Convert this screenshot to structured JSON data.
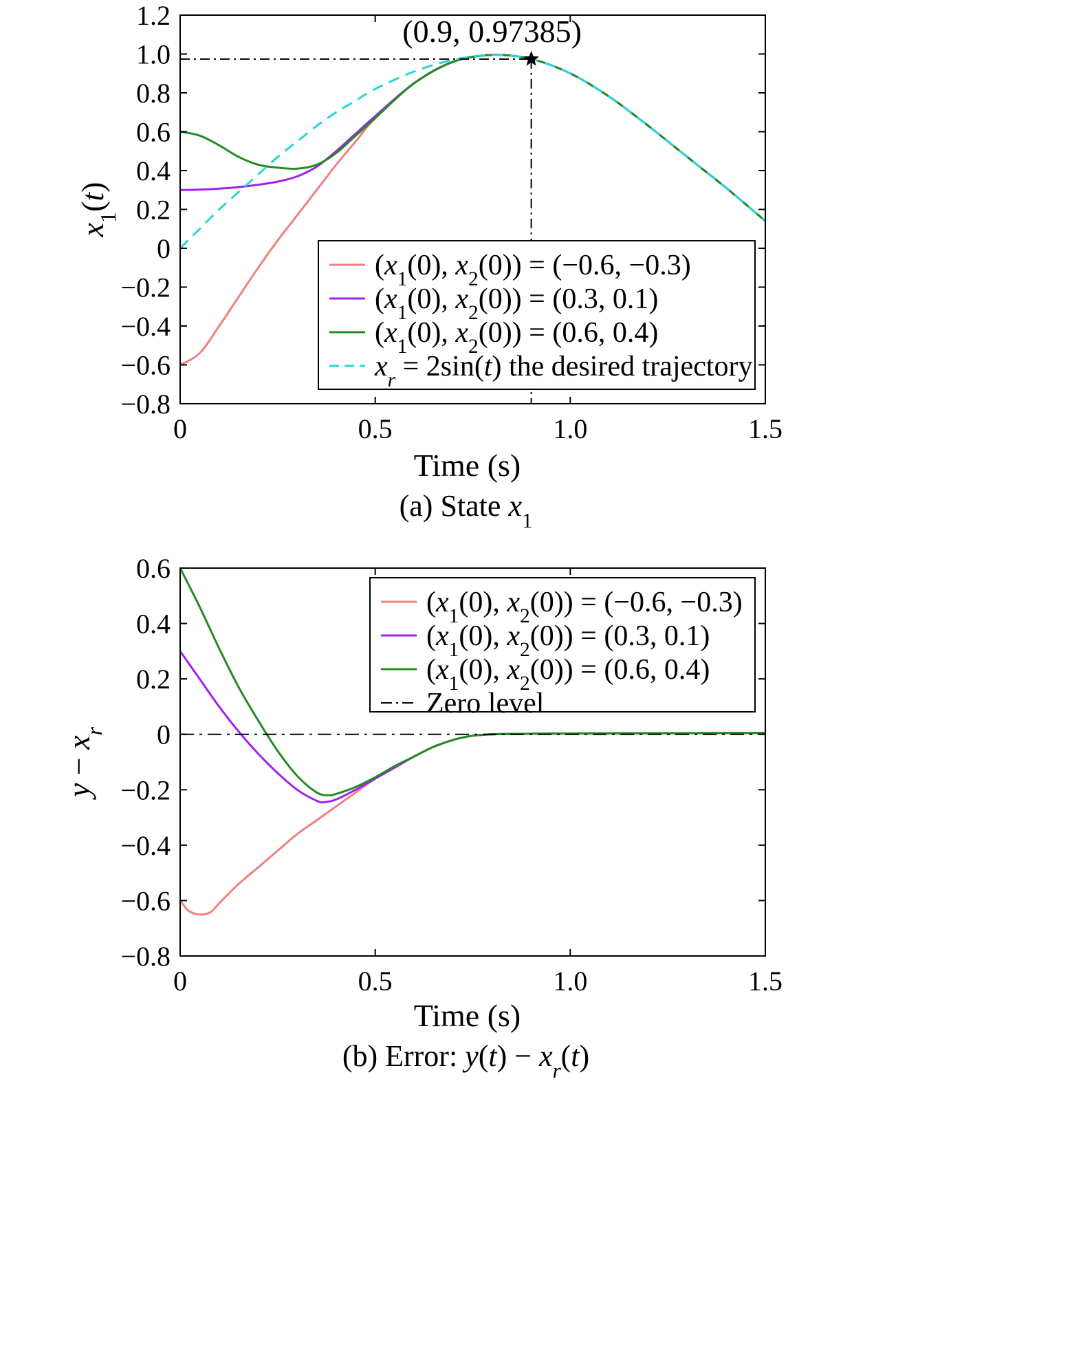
{
  "chart_data": [
    {
      "type": "line",
      "caption": "(a) State x₁",
      "xlabel": "Time (s)",
      "ylabel": "x₁(t)",
      "xlim": [
        0,
        1.5
      ],
      "ylim": [
        -0.8,
        1.2
      ],
      "xticks": [
        "0",
        "0.5",
        "1.0",
        "1.5"
      ],
      "yticks": [
        "1.2",
        "1.0",
        "0.8",
        "0.6",
        "0.4",
        "0.2",
        "0",
        "−0.2",
        "−0.4",
        "−0.6",
        "−0.8"
      ],
      "legend_position": "bottom-right",
      "annotation": {
        "text": "(0.9, 0.97385)",
        "x": 0.9,
        "y": 0.97385
      },
      "series": [
        {
          "name": "(x₁(0), x₂(0)) = (−0.6, −0.3)",
          "color": "#f08080",
          "style": "solid",
          "x": [
            0,
            0.05,
            0.1,
            0.15,
            0.2,
            0.25,
            0.3,
            0.35,
            0.4,
            0.45,
            0.5,
            0.6,
            0.7,
            0.8,
            0.9,
            1.0,
            1.1,
            1.2,
            1.3,
            1.4,
            1.5
          ],
          "y": [
            -0.6,
            -0.54,
            -0.4,
            -0.25,
            -0.1,
            0.04,
            0.17,
            0.3,
            0.43,
            0.55,
            0.67,
            0.85,
            0.96,
            0.995,
            0.974,
            0.9,
            0.78,
            0.63,
            0.47,
            0.31,
            0.14
          ]
        },
        {
          "name": "(x₁(0), x₂(0)) = (0.3, 0.1)",
          "color": "#a020f0",
          "style": "solid",
          "x": [
            0,
            0.05,
            0.1,
            0.15,
            0.2,
            0.25,
            0.3,
            0.35,
            0.4,
            0.45,
            0.5,
            0.6,
            0.7,
            0.8,
            0.9,
            1.0,
            1.1,
            1.2,
            1.3,
            1.4,
            1.5
          ],
          "y": [
            0.3,
            0.302,
            0.307,
            0.315,
            0.327,
            0.343,
            0.37,
            0.42,
            0.5,
            0.59,
            0.68,
            0.85,
            0.96,
            0.995,
            0.974,
            0.9,
            0.78,
            0.63,
            0.47,
            0.31,
            0.14
          ]
        },
        {
          "name": "(x₁(0), x₂(0)) = (0.6, 0.4)",
          "color": "#228b22",
          "style": "solid",
          "x": [
            0,
            0.05,
            0.1,
            0.15,
            0.2,
            0.25,
            0.3,
            0.35,
            0.4,
            0.45,
            0.5,
            0.6,
            0.7,
            0.8,
            0.9,
            1.0,
            1.1,
            1.2,
            1.3,
            1.4,
            1.5
          ],
          "y": [
            0.6,
            0.58,
            0.53,
            0.47,
            0.43,
            0.415,
            0.41,
            0.43,
            0.49,
            0.58,
            0.67,
            0.85,
            0.96,
            0.995,
            0.974,
            0.9,
            0.78,
            0.63,
            0.47,
            0.31,
            0.14
          ]
        },
        {
          "name": "xᵣ = 2sin(t) the desired trajectory",
          "color": "#28d6d6",
          "style": "dashed",
          "x": [
            0,
            0.05,
            0.1,
            0.15,
            0.2,
            0.25,
            0.3,
            0.35,
            0.4,
            0.45,
            0.5,
            0.6,
            0.7,
            0.8,
            0.9,
            1.0,
            1.1,
            1.2,
            1.3,
            1.4,
            1.5
          ],
          "y": [
            0.0,
            0.1,
            0.2,
            0.29,
            0.38,
            0.47,
            0.55,
            0.63,
            0.7,
            0.76,
            0.82,
            0.91,
            0.97,
            0.995,
            0.974,
            0.9,
            0.78,
            0.63,
            0.47,
            0.31,
            0.14
          ]
        }
      ]
    },
    {
      "type": "line",
      "caption": "(b) Error: y(t) − xᵣ(t)",
      "xlabel": "Time (s)",
      "ylabel": "y − xᵣ",
      "xlim": [
        0,
        1.5
      ],
      "ylim": [
        -0.8,
        0.6
      ],
      "xticks": [
        "0",
        "0.5",
        "1.0",
        "1.5"
      ],
      "yticks": [
        "0.6",
        "0.4",
        "0.2",
        "0",
        "−0.2",
        "−0.4",
        "−0.6",
        "−0.8"
      ],
      "legend_position": "top-right",
      "series": [
        {
          "name": "(x₁(0), x₂(0)) = (−0.6, −0.3)",
          "color": "#f08080",
          "style": "solid",
          "x": [
            0,
            0.02,
            0.04,
            0.06,
            0.08,
            0.1,
            0.15,
            0.2,
            0.25,
            0.3,
            0.35,
            0.4,
            0.45,
            0.5,
            0.55,
            0.6,
            0.65,
            0.7,
            0.75,
            0.8,
            0.9,
            1.0,
            1.2,
            1.5
          ],
          "y": [
            -0.6,
            -0.635,
            -0.648,
            -0.65,
            -0.64,
            -0.61,
            -0.54,
            -0.48,
            -0.42,
            -0.36,
            -0.31,
            -0.26,
            -0.21,
            -0.16,
            -0.12,
            -0.08,
            -0.045,
            -0.02,
            -0.005,
            0.0,
            0.002,
            0.003,
            0.004,
            0.005
          ]
        },
        {
          "name": "(x₁(0), x₂(0)) = (0.3, 0.1)",
          "color": "#a020f0",
          "style": "solid",
          "x": [
            0,
            0.05,
            0.1,
            0.15,
            0.2,
            0.25,
            0.3,
            0.35,
            0.37,
            0.4,
            0.45,
            0.5,
            0.55,
            0.6,
            0.65,
            0.7,
            0.75,
            0.8,
            0.9,
            1.0,
            1.2,
            1.5
          ],
          "y": [
            0.3,
            0.2,
            0.1,
            0.01,
            -0.07,
            -0.14,
            -0.2,
            -0.24,
            -0.245,
            -0.235,
            -0.2,
            -0.16,
            -0.12,
            -0.08,
            -0.045,
            -0.02,
            -0.005,
            0.0,
            0.002,
            0.003,
            0.004,
            0.005
          ]
        },
        {
          "name": "(x₁(0), x₂(0)) = (0.6, 0.4)",
          "color": "#228b22",
          "style": "solid",
          "x": [
            0,
            0.05,
            0.1,
            0.15,
            0.2,
            0.25,
            0.3,
            0.35,
            0.38,
            0.4,
            0.45,
            0.5,
            0.55,
            0.6,
            0.65,
            0.7,
            0.75,
            0.8,
            0.9,
            1.0,
            1.2,
            1.5
          ],
          "y": [
            0.6,
            0.46,
            0.31,
            0.17,
            0.05,
            -0.06,
            -0.15,
            -0.21,
            -0.22,
            -0.215,
            -0.19,
            -0.155,
            -0.115,
            -0.08,
            -0.045,
            -0.02,
            -0.005,
            0.0,
            0.002,
            0.003,
            0.004,
            0.005
          ]
        },
        {
          "name": "Zero level",
          "color": "#000000",
          "style": "dashdot",
          "x": [
            0,
            1.5
          ],
          "y": [
            0,
            0
          ]
        }
      ]
    }
  ]
}
